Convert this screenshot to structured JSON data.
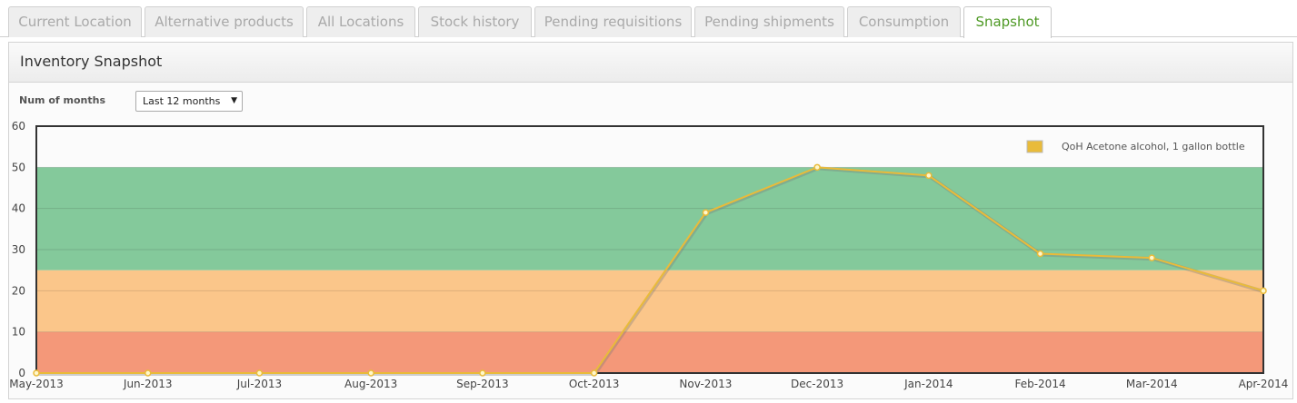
{
  "tabs": [
    {
      "label": "Current Location"
    },
    {
      "label": "Alternative products"
    },
    {
      "label": "All Locations"
    },
    {
      "label": "Stock history"
    },
    {
      "label": "Pending requisitions"
    },
    {
      "label": "Pending shipments"
    },
    {
      "label": "Consumption"
    },
    {
      "label": "Snapshot",
      "active": true
    }
  ],
  "panel": {
    "title": "Inventory Snapshot",
    "filter_label": "Num of months",
    "months_select": "Last 12 months"
  },
  "colors": {
    "zone_high": "#84c99b",
    "zone_mid": "#fbc68a",
    "zone_low": "#f49879",
    "series": "#e9bb3a",
    "active_tab": "#4f9a26"
  },
  "chart_data": {
    "type": "line",
    "x": [
      "May-2013",
      "Jun-2013",
      "Jul-2013",
      "Aug-2013",
      "Sep-2013",
      "Oct-2013",
      "Nov-2013",
      "Dec-2013",
      "Jan-2014",
      "Feb-2014",
      "Mar-2014",
      "Apr-2014"
    ],
    "series": [
      {
        "name": "QoH Acetone alcohol, 1 gallon bottle",
        "values": [
          0,
          0,
          0,
          0,
          0,
          0,
          39,
          50,
          48,
          29,
          28,
          20
        ]
      }
    ],
    "ylim": [
      0,
      60
    ],
    "yticks": [
      0,
      10,
      20,
      30,
      40,
      50,
      60
    ],
    "bands": [
      {
        "from": 0,
        "to": 10,
        "color": "#f49879"
      },
      {
        "from": 10,
        "to": 25,
        "color": "#fbc68a"
      },
      {
        "from": 25,
        "to": 50,
        "color": "#84c99b"
      }
    ],
    "grid": true,
    "legend_position": "top-right"
  }
}
